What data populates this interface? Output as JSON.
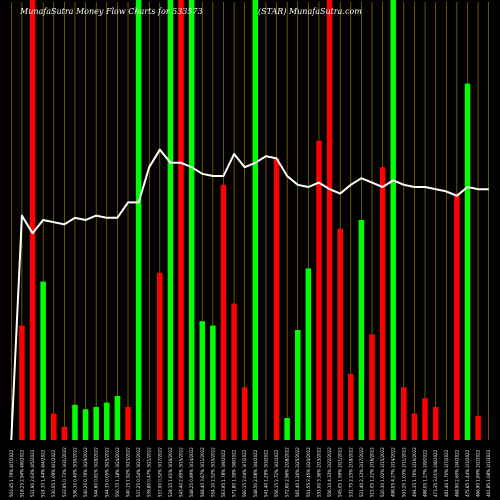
{
  "chart_data": {
    "type": "bar",
    "title_left": "MunafaSutra  Money Flow  Charts for 533573",
    "title_right": "(STAR) MunafaSutra.com",
    "colors": {
      "background": "#000000",
      "up": "#00ff00",
      "down": "#ff0000",
      "gridline": "#b8860b",
      "line": "#ffffff"
    },
    "grid": true,
    "ylim": [
      0,
      100
    ],
    "line_ylim": [
      0,
      100
    ],
    "categories": [
      "503.45 1.79% 4/7/2022",
      "518.25 2.94% 4/6/2022",
      "531.90 2.63% 4/5/2022",
      "524.35 1.44% 4/4/2022",
      "530.05 1.09% 4/1/2022",
      "533.95 0.73% 3/31/2022",
      "536.10 0.40% 3/30/2022",
      "540.20 0.76% 3/29/2022",
      "544.60 0.81% 3/28/2022",
      "544.35 0.05% 3/25/2022",
      "550.75 1.18% 3/24/2022",
      "540.15 1.92% 3/23/2022",
      "537.25 0.54% 3/22/2022",
      "539.80 0.47% 3/21/2022",
      "537.00 0.52% 3/17/2022",
      "528.35 1.61% 3/16/2022",
      "543.40 2.85% 3/15/2022",
      "548.25 0.89% 3/14/2022",
      "568.40 3.67% 3/11/2022",
      "554.10 2.52% 3/10/2022",
      "563.95 1.78% 3/9/2022",
      "571.80 1.39% 3/8/2022",
      "560.15 2.04% 3/7/2022",
      "548.50 2.08% 3/4/2022",
      "541.40 1.29% 3/3/2022",
      "556.15 2.72% 3/2/2022",
      "572.60 2.96% 2/28/2022",
      "565.40 1.26% 2/25/2022",
      "551.55 2.45% 2/24/2022",
      "533.00 3.36% 2/23/2022",
      "556.10 4.33% 2/22/2022",
      "545.05 1.99% 2/21/2022",
      "532.75 2.25% 2/18/2022",
      "521.40 2.13% 2/17/2022",
      "515.05 1.22% 2/16/2022",
      "520.30 1.02% 2/15/2022",
      "498.05 4.27% 2/14/2022",
      "503.20 1.03% 2/11/2022",
      "494.35 1.76% 2/10/2022",
      "488.05 1.27% 2/9/2022",
      "473.35 3.01% 2/8/2022",
      "481.40 1.70% 2/7/2022",
      "468.90 2.60% 2/4/2022",
      "475.65 1.44% 2/3/2022",
      "466.90 1.84% 2/2/2022",
      "461.85 1.08% 2/1/2022"
    ],
    "series": [
      {
        "values": [
          0,
          26,
          100,
          36,
          6,
          3,
          8,
          7,
          7.5,
          8.5,
          10,
          7.5,
          100,
          0,
          38,
          100,
          100,
          100,
          27,
          26,
          58,
          31,
          12,
          100,
          0,
          64,
          5,
          25,
          39,
          68,
          100,
          48,
          15,
          50,
          24,
          62,
          100,
          12,
          6,
          9.5,
          7.5,
          0,
          56,
          81,
          5.5,
          0
        ],
        "colors": [
          "red",
          "red",
          "red",
          "green",
          "red",
          "red",
          "green",
          "green",
          "green",
          "green",
          "green",
          "red",
          "green",
          "green",
          "red",
          "green",
          "red",
          "green",
          "green",
          "green",
          "red",
          "red",
          "red",
          "green",
          "green",
          "red",
          "green",
          "green",
          "green",
          "red",
          "red",
          "red",
          "red",
          "green",
          "red",
          "red",
          "green",
          "red",
          "red",
          "red",
          "red",
          "green",
          "red",
          "green",
          "red",
          "red"
        ]
      }
    ],
    "line_values": [
      0,
      51,
      47,
      50,
      49.5,
      49,
      50.5,
      50,
      51,
      50.5,
      50.5,
      54,
      54,
      62,
      66,
      63,
      63,
      62,
      60.5,
      60,
      60,
      65,
      62,
      63,
      64.5,
      64,
      60,
      58,
      57.5,
      58.5,
      57,
      56,
      58,
      59.5,
      58.5,
      57.5,
      59,
      58,
      57.5,
      57.5,
      57,
      56.5,
      55.5,
      57.5,
      57,
      57
    ]
  }
}
